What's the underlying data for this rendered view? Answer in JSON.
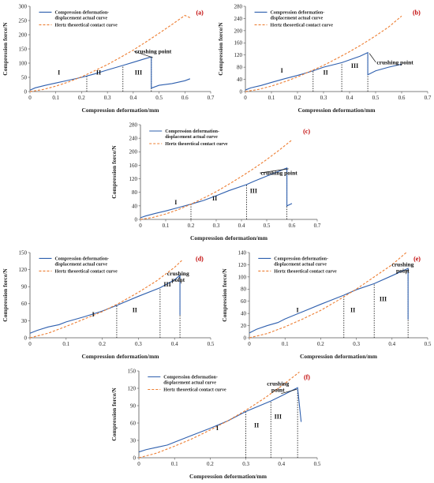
{
  "figure": {
    "legend_actual": [
      "Compression deformation-",
      "displacement actual curve"
    ],
    "legend_hertz": "Hertz theoretical contact curve",
    "crushing_label": "crushing point",
    "region_labels": [
      "I",
      "II",
      "III"
    ],
    "colors": {
      "actual": "#2e5fae",
      "hertz": "#ed7d31",
      "panel_label": "#c00000"
    }
  },
  "chart_data": [
    {
      "type": "line",
      "panel_label": "(a)",
      "xlabel": "Compression deformation/mm",
      "ylabel": "Compression force/N",
      "xlim": [
        0,
        0.7
      ],
      "ylim": [
        0,
        300
      ],
      "xticks": [
        "0",
        "0.1",
        "0.2",
        "0.3",
        "0.4",
        "0.5",
        "0.6",
        "0.7"
      ],
      "yticks": [
        "0",
        "50",
        "100",
        "150",
        "200",
        "250",
        "300"
      ],
      "region_boundaries": [
        0.22,
        0.36,
        0.47
      ],
      "crushing_point": [
        0.47,
        122
      ],
      "series": [
        {
          "name": "Compression deformation-displacement actual curve",
          "style": "solid",
          "x": [
            0,
            0.02,
            0.06,
            0.1,
            0.15,
            0.2,
            0.25,
            0.3,
            0.36,
            0.4,
            0.44,
            0.47,
            0.47,
            0.5,
            0.55,
            0.6,
            0.62
          ],
          "y": [
            5,
            13,
            22,
            30,
            40,
            50,
            62,
            76,
            92,
            103,
            114,
            122,
            12,
            22,
            28,
            38,
            45
          ]
        },
        {
          "name": "Hertz theoretical contact curve",
          "style": "dashed",
          "x": [
            0,
            0.05,
            0.1,
            0.15,
            0.2,
            0.25,
            0.3,
            0.35,
            0.4,
            0.45,
            0.5,
            0.55,
            0.6,
            0.62
          ],
          "y": [
            0,
            7,
            19,
            34,
            52,
            73,
            95,
            120,
            146,
            175,
            205,
            236,
            268,
            260
          ]
        }
      ]
    },
    {
      "type": "line",
      "panel_label": "(b)",
      "xlabel": "Compression deformation/mm",
      "ylabel": "Compression force/N",
      "xlim": [
        0,
        0.7
      ],
      "ylim": [
        0,
        280
      ],
      "xticks": [
        "0",
        "0.1",
        "0.2",
        "0.3",
        "0.4",
        "0.5",
        "0.6",
        "0.7"
      ],
      "yticks": [
        "0",
        "40",
        "80",
        "120",
        "160",
        "200",
        "240",
        "280"
      ],
      "region_boundaries": [
        0.26,
        0.37,
        0.47
      ],
      "crushing_point": [
        0.47,
        128
      ],
      "series": [
        {
          "name": "Compression deformation-displacement actual curve",
          "style": "solid",
          "x": [
            0,
            0.02,
            0.06,
            0.1,
            0.15,
            0.2,
            0.26,
            0.3,
            0.37,
            0.4,
            0.44,
            0.47,
            0.47,
            0.5,
            0.55,
            0.6
          ],
          "y": [
            5,
            12,
            20,
            30,
            42,
            53,
            68,
            80,
            95,
            104,
            116,
            128,
            55,
            68,
            80,
            90
          ]
        },
        {
          "name": "Hertz theoretical contact curve",
          "style": "dashed",
          "x": [
            0,
            0.05,
            0.1,
            0.15,
            0.2,
            0.25,
            0.3,
            0.35,
            0.4,
            0.45,
            0.5,
            0.55,
            0.6
          ],
          "y": [
            0,
            7,
            18,
            32,
            48,
            67,
            86,
            108,
            131,
            156,
            183,
            212,
            248
          ]
        }
      ]
    },
    {
      "type": "line",
      "panel_label": "(c)",
      "xlabel": "Compression deformation/mm",
      "ylabel": "Compression force/N",
      "xlim": [
        0,
        0.7
      ],
      "ylim": [
        0,
        280
      ],
      "xticks": [
        "0",
        "0.1",
        "0.2",
        "0.3",
        "0.4",
        "0.5",
        "0.6",
        "0.7"
      ],
      "yticks": [
        "0",
        "40",
        "80",
        "120",
        "160",
        "200",
        "240",
        "280"
      ],
      "region_boundaries": [
        0.2,
        0.42,
        0.58
      ],
      "crushing_point": [
        0.58,
        152
      ],
      "series": [
        {
          "name": "Compression deformation-displacement actual curve",
          "style": "solid",
          "x": [
            0,
            0.02,
            0.06,
            0.1,
            0.15,
            0.2,
            0.25,
            0.3,
            0.35,
            0.42,
            0.45,
            0.5,
            0.55,
            0.58,
            0.58,
            0.6
          ],
          "y": [
            5,
            10,
            18,
            25,
            35,
            45,
            56,
            70,
            85,
            103,
            113,
            128,
            143,
            152,
            40,
            47
          ]
        },
        {
          "name": "Hertz theoretical contact curve",
          "style": "dashed",
          "x": [
            0,
            0.05,
            0.1,
            0.15,
            0.2,
            0.25,
            0.3,
            0.35,
            0.4,
            0.45,
            0.5,
            0.55,
            0.6
          ],
          "y": [
            0,
            6,
            16,
            29,
            45,
            63,
            82,
            104,
            127,
            151,
            177,
            205,
            235
          ]
        }
      ]
    },
    {
      "type": "line",
      "panel_label": "(d)",
      "xlabel": "Compression deformation/mm",
      "ylabel": "Compression force/N",
      "xlim": [
        0,
        0.5
      ],
      "ylim": [
        0,
        150
      ],
      "xticks": [
        "0",
        "0.1",
        "0.2",
        "0.3",
        "0.4",
        "0.5"
      ],
      "yticks": [
        "0",
        "30",
        "60",
        "90",
        "120",
        "150"
      ],
      "region_boundaries": [
        0.24,
        0.36,
        0.415
      ],
      "crushing_point": [
        0.415,
        110
      ],
      "series": [
        {
          "name": "Compression deformation-displacement actual curve",
          "style": "solid",
          "x": [
            0,
            0.02,
            0.05,
            0.08,
            0.1,
            0.15,
            0.2,
            0.24,
            0.3,
            0.36,
            0.4,
            0.415,
            0.415
          ],
          "y": [
            8,
            13,
            19,
            23,
            28,
            37,
            47,
            57,
            73,
            88,
            102,
            110,
            40
          ]
        },
        {
          "name": "Hertz theoretical contact curve",
          "style": "dashed",
          "x": [
            0,
            0.05,
            0.1,
            0.15,
            0.2,
            0.25,
            0.3,
            0.35,
            0.4,
            0.42
          ],
          "y": [
            0,
            8,
            20,
            33,
            46,
            62,
            80,
            100,
            124,
            136
          ]
        }
      ]
    },
    {
      "type": "line",
      "panel_label": "(e)",
      "xlabel": "Compression deformation/mm",
      "ylabel": "Compression force/N",
      "xlim": [
        0,
        0.5
      ],
      "ylim": [
        0,
        140
      ],
      "xticks": [
        "0",
        "0.1",
        "0.2",
        "0.3",
        "0.4",
        "0.5"
      ],
      "yticks": [
        "0",
        "20",
        "40",
        "60",
        "80",
        "100",
        "120",
        "140"
      ],
      "region_boundaries": [
        0.265,
        0.35,
        0.445
      ],
      "crushing_point": [
        0.445,
        114
      ],
      "series": [
        {
          "name": "Compression deformation-displacement actual curve",
          "style": "solid",
          "x": [
            0,
            0.02,
            0.05,
            0.08,
            0.1,
            0.15,
            0.2,
            0.265,
            0.3,
            0.35,
            0.4,
            0.445,
            0.445
          ],
          "y": [
            8,
            14,
            20,
            25,
            31,
            43,
            55,
            70,
            79,
            89,
            102,
            114,
            30
          ]
        },
        {
          "name": "Hertz theoretical contact curve",
          "style": "dashed",
          "x": [
            0,
            0.05,
            0.1,
            0.15,
            0.2,
            0.25,
            0.3,
            0.35,
            0.4,
            0.44
          ],
          "y": [
            0,
            7,
            18,
            31,
            45,
            62,
            80,
            100,
            120,
            140
          ]
        }
      ]
    },
    {
      "type": "line",
      "panel_label": "(f)",
      "xlabel": "Compression deformation/mm",
      "ylabel": "Compression force/N",
      "xlim": [
        0,
        0.5
      ],
      "ylim": [
        0,
        150
      ],
      "xticks": [
        "0",
        "0.1",
        "0.2",
        "0.3",
        "0.4",
        "0.5"
      ],
      "yticks": [
        "0",
        "30",
        "60",
        "90",
        "120",
        "150"
      ],
      "region_boundaries": [
        0.3,
        0.37,
        0.445
      ],
      "crushing_point": [
        0.445,
        121
      ],
      "series": [
        {
          "name": "Compression deformation-displacement actual curve",
          "style": "solid",
          "x": [
            0,
            0.02,
            0.05,
            0.08,
            0.1,
            0.15,
            0.2,
            0.25,
            0.3,
            0.37,
            0.4,
            0.445,
            0.455
          ],
          "y": [
            10,
            14,
            18,
            22,
            27,
            39,
            51,
            64,
            80,
            98,
            107,
            121,
            62
          ]
        },
        {
          "name": "Hertz theoretical contact curve",
          "style": "dashed",
          "x": [
            0,
            0.05,
            0.1,
            0.15,
            0.2,
            0.25,
            0.3,
            0.35,
            0.4,
            0.45
          ],
          "y": [
            0,
            8,
            20,
            33,
            48,
            64,
            82,
            102,
            124,
            148
          ]
        }
      ]
    }
  ]
}
